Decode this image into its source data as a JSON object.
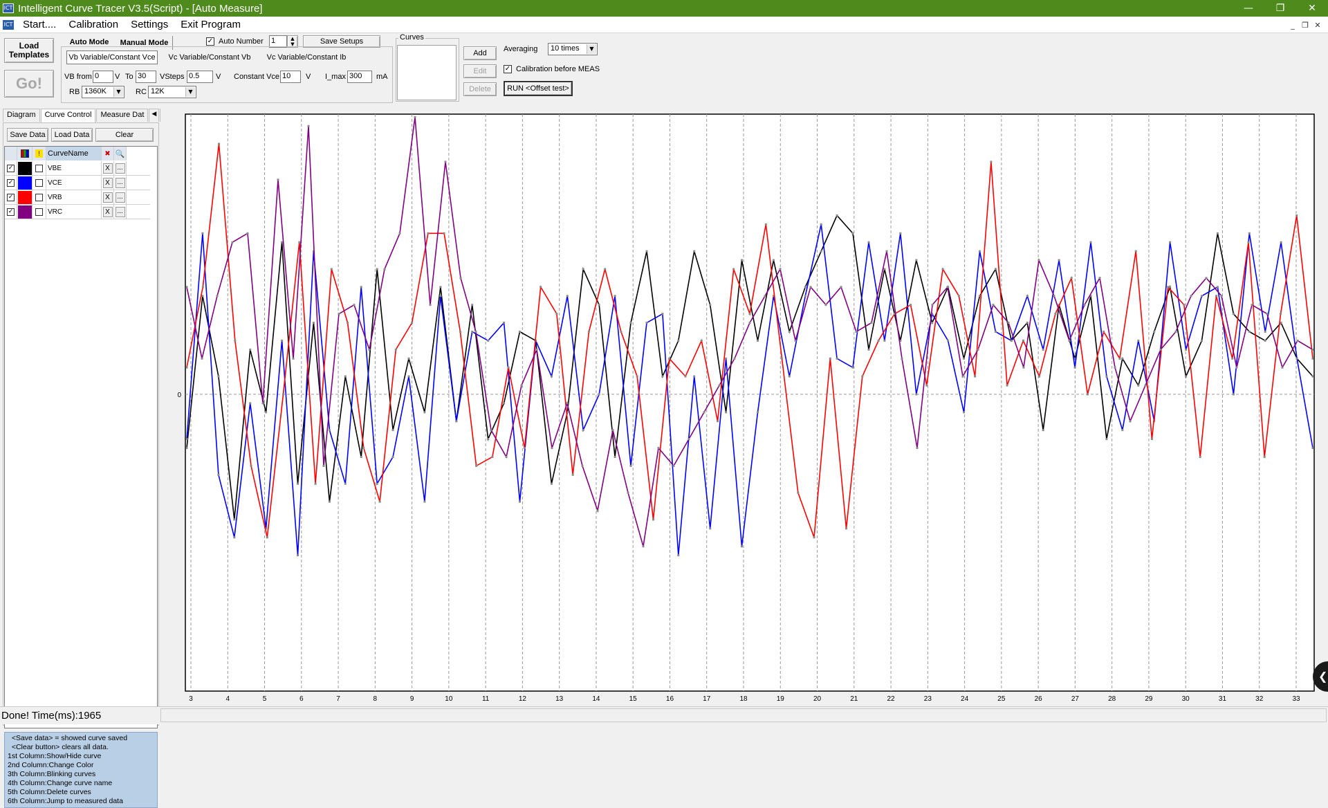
{
  "window": {
    "title": "Intelligent Curve Tracer V3.5(Script) - [Auto Measure]",
    "controls": {
      "minimize": "—",
      "restore": "❐",
      "close": "✕"
    },
    "mdi_controls": {
      "minimize": "_",
      "restore": "❐",
      "close": "✕"
    }
  },
  "menu": {
    "items": [
      "Start....",
      "Calibration",
      "Settings",
      "Exit Program"
    ]
  },
  "toolbar": {
    "load_templates": "Load Templates",
    "go": "Go!",
    "auto_mode": "Auto Mode",
    "manual_mode": "Manual Mode",
    "auto_number_label": "Auto Number",
    "auto_number_value": "1",
    "save_setups": "Save Setups",
    "mode_tabs": [
      "Vb Variable/Constant Vce",
      "Vc Variable/Constant Vb",
      "Vc Variable/Constant Ib"
    ],
    "vb_from_label": "VB from",
    "vb_from_value": "0",
    "v1": "V",
    "to_label": "To",
    "to_value": "30",
    "vsteps_label": "VSteps",
    "vsteps_value": "0.5",
    "v2": "V",
    "const_vce_label": "Constant Vce",
    "const_vce_value": "10",
    "v3": "V",
    "imax_label": "I_max",
    "imax_value": "300",
    "ma": "mA",
    "rb_label": "RB",
    "rb_value": "1360K",
    "rc_label": "RC",
    "rc_value": "12K",
    "curves_title": "Curves",
    "add": "Add",
    "edit": "Edit",
    "delete": "Delete",
    "averaging_label": "Averaging",
    "averaging_value": "10 times",
    "calib_label": "Calibration before MEAS",
    "run_offset": "RUN <Offset test>"
  },
  "left": {
    "tabs": [
      "Diagram",
      "Curve Control",
      "Measure Dat"
    ],
    "save_data": "Save Data",
    "load_data": "Load Data",
    "clear": "Clear",
    "col_header": "CurveName",
    "delete_label": "X",
    "more_label": "...",
    "curves": [
      {
        "name": "VBE",
        "color": "#000000"
      },
      {
        "name": "VCE",
        "color": "#0000ff"
      },
      {
        "name": "VRB",
        "color": "#ff0000"
      },
      {
        "name": "VRC",
        "color": "#800080"
      }
    ],
    "help": {
      "lines": [
        "  <Save data> = showed curve saved",
        "  <Clear button> clears all data.",
        "1st Column:Show/Hide curve",
        "2nd Column:Change Color",
        "3th Column:Blinking curves",
        "4th Column:Change curve name",
        "5th Column:Delete curves",
        "6th Column:Jump to measured data"
      ]
    }
  },
  "status": {
    "text": "Done!   Time(ms):1965"
  },
  "chart_data": {
    "type": "line",
    "x_ticks": [
      "3",
      "4",
      "5",
      "6",
      "7",
      "8",
      "9",
      "10",
      "11",
      "12",
      "13",
      "14",
      "15",
      "16",
      "17",
      "18",
      "19",
      "20",
      "21",
      "22",
      "23",
      "24",
      "25",
      "26",
      "27",
      "28",
      "29",
      "30",
      "31",
      "32",
      "33"
    ],
    "y_ticks": [
      "0"
    ],
    "ylim": [
      -1,
      1
    ],
    "grid": true,
    "series": [
      {
        "name": "VBE",
        "color": "#000000",
        "values": [
          -0.3,
          0.55,
          0.1,
          -0.7,
          0.25,
          -0.1,
          0.85,
          -0.5,
          0.4,
          -0.6,
          0.1,
          -0.35,
          0.7,
          -0.2,
          0.2,
          -0.1,
          0.6,
          -0.15,
          0.5,
          -0.25,
          -0.05,
          0.35,
          0.3,
          -0.5,
          -0.1,
          0.7,
          0.5,
          -0.35,
          0.4,
          0.8,
          0.1,
          0.3,
          0.8,
          0.5,
          -0.1,
          0.75,
          0.3,
          0.75,
          0.35,
          0.6,
          0.8,
          1.0,
          0.9,
          0.25,
          0.7,
          0.3,
          0.75,
          0.4,
          0.6,
          0.2,
          0.55,
          0.7,
          0.3,
          0.4,
          -0.2,
          0.5,
          0.2,
          0.55,
          -0.25,
          0.2,
          0.05,
          0.35,
          0.6,
          0.1,
          0.3,
          0.9,
          0.45,
          0.35,
          0.3,
          0.4,
          0.2,
          0.1
        ]
      },
      {
        "name": "VCE",
        "color": "#0000ff",
        "values": [
          -0.25,
          0.9,
          -0.45,
          -0.8,
          -0.05,
          -0.75,
          0.3,
          -0.9,
          0.8,
          -0.2,
          -0.5,
          0.6,
          -0.5,
          -0.35,
          0.1,
          -0.6,
          0.55,
          -0.15,
          0.35,
          0.3,
          0.4,
          -0.6,
          0.3,
          0.1,
          0.55,
          -0.2,
          0.0,
          0.55,
          -0.4,
          0.4,
          0.45,
          -0.9,
          0.1,
          -0.75,
          0.2,
          -0.85,
          -0.1,
          0.55,
          0.1,
          0.55,
          0.95,
          0.2,
          0.15,
          0.85,
          0.3,
          0.9,
          0.0,
          0.45,
          0.3,
          -0.1,
          0.8,
          0.35,
          0.3,
          0.55,
          0.25,
          0.75,
          0.15,
          0.85,
          0.1,
          -0.2,
          0.3,
          -0.15,
          0.85,
          0.25,
          0.55,
          0.6,
          0.0,
          0.9,
          0.35,
          0.85,
          0.2,
          -0.3
        ]
      },
      {
        "name": "VRB",
        "color": "#ff0000",
        "values": [
          0.15,
          0.6,
          1.4,
          0.3,
          -0.4,
          -0.8,
          0.0,
          0.85,
          -0.5,
          0.7,
          0.4,
          -0.3,
          -0.6,
          0.25,
          0.4,
          0.9,
          0.9,
          0.35,
          -0.4,
          -0.35,
          0.15,
          -0.3,
          0.6,
          0.45,
          -0.45,
          0.35,
          0.7,
          0.35,
          0.1,
          -0.7,
          0.2,
          0.1,
          0.3,
          -0.15,
          0.7,
          0.45,
          0.95,
          0.2,
          -0.55,
          -0.8,
          0.2,
          -0.75,
          0.1,
          0.3,
          0.45,
          0.5,
          0.05,
          0.7,
          0.55,
          0.1,
          1.3,
          0.05,
          0.3,
          0.1,
          0.45,
          0.65,
          0.0,
          0.35,
          0.2,
          0.8,
          -0.25,
          0.6,
          0.5,
          -0.35,
          0.55,
          0.2,
          0.85,
          -0.35,
          0.45,
          1.0,
          0.2
        ]
      },
      {
        "name": "VRC",
        "color": "#800080",
        "values": [
          0.6,
          0.2,
          0.55,
          0.85,
          0.9,
          -0.05,
          1.2,
          0.2,
          1.5,
          -0.4,
          0.45,
          0.5,
          0.25,
          0.7,
          0.9,
          1.55,
          0.5,
          1.3,
          0.65,
          0.35,
          -0.2,
          -0.35,
          0.05,
          0.25,
          -0.3,
          -0.05,
          -0.4,
          -0.65,
          -0.2,
          -0.55,
          -0.85,
          -0.3,
          -0.4,
          -0.25,
          -0.1,
          0.05,
          0.2,
          0.4,
          0.55,
          0.7,
          0.3,
          0.6,
          0.5,
          0.6,
          0.35,
          0.4,
          0.8,
          0.2,
          -0.3,
          0.5,
          0.6,
          0.1,
          0.25,
          0.5,
          0.4,
          0.15,
          0.75,
          0.55,
          0.3,
          0.5,
          0.65,
          0.15,
          -0.15,
          0.05,
          0.25,
          0.35,
          0.55,
          0.65,
          0.55,
          0.15,
          0.5,
          0.45,
          0.15,
          0.3,
          0.25
        ]
      }
    ]
  }
}
